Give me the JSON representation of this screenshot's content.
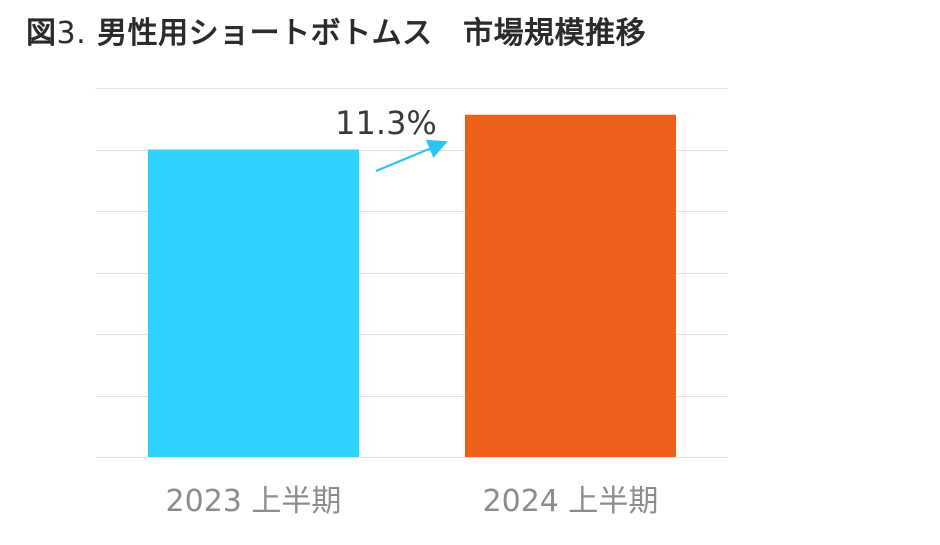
{
  "title": {
    "prefix": "図",
    "number": "3.",
    "text": "男性用ショートボトムス　市場規模推移"
  },
  "colors": {
    "bar_2023": "#2ed3ff",
    "bar_2024": "#ee601a",
    "arrow": "#2ec4ef",
    "grid": "#e3e3e3",
    "tick_label": "#8c8c8c",
    "annotation": "#3a3a3a"
  },
  "chart_data": {
    "type": "bar",
    "categories": [
      "2023 上半期",
      "2024 上半期"
    ],
    "values": [
      100,
      111.3
    ],
    "ylim": [
      0,
      120
    ],
    "grid": true,
    "legend": "none",
    "annotations": [
      {
        "text": "11.3%",
        "from_category": "2023 上半期",
        "to_category": "2024 上半期",
        "kind": "growth-arrow"
      }
    ]
  }
}
